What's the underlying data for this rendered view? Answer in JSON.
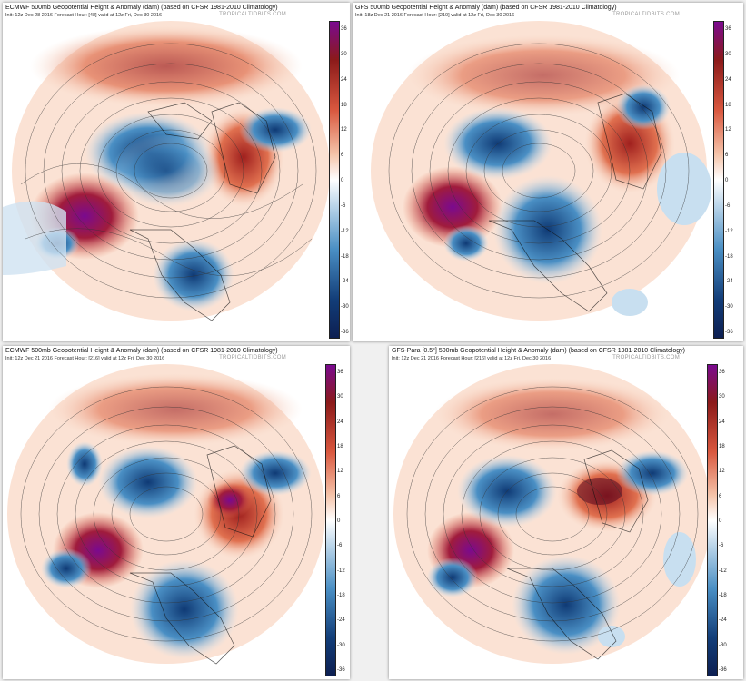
{
  "panels": [
    {
      "id": "p1",
      "title": "ECMWF 500mb Geopotential Height & Anomaly (dam) (based on CFSR 1981-2010 Climatology)",
      "subtitle": "Init: 12z Dec 28 2016   Forecast Hour: [48]   valid at 12z Fri, Dec 30 2016",
      "brand": "TROPICALTIDBITS.COM"
    },
    {
      "id": "p2",
      "title": "GFS 500mb Geopotential Height & Anomaly (dam) (based on CFSR 1981-2010 Climatology)",
      "subtitle": "Init: 18z Dec 21 2016   Forecast Hour: [210]   valid at 12z Fri, Dec 30 2016",
      "brand": "TROPICALTIDBITS.COM"
    },
    {
      "id": "p3",
      "title": "ECMWF 500mb Geopotential Height & Anomaly (dam) (based on CFSR 1981-2010 Climatology)",
      "subtitle": "Init: 12z Dec 21 2016   Forecast Hour: [216]   valid at 12z Fri, Dec 30 2016",
      "brand": "TROPICALTIDBITS.COM"
    },
    {
      "id": "p4",
      "title": "GFS-Para [0.5°] 500mb Geopotential Height & Anomaly (dam) (based on CFSR 1981-2010 Climatology)",
      "subtitle": "Init: 12z Dec 21 2016   Forecast Hour: [216]   valid at 12z Fri, Dec 30 2016",
      "brand": "TROPICALTIDBITS.COM"
    }
  ],
  "colorbar": {
    "ticks": [
      "36",
      "30",
      "24",
      "18",
      "12",
      "6",
      "0",
      "-6",
      "-12",
      "-18",
      "-24",
      "-30",
      "-36"
    ],
    "colors": {
      "max": "#7a0a8f",
      "warm_dark": "#8b1a1a",
      "warm_mid": "#d9583f",
      "warm_light": "#f5c4aa",
      "neutral": "#ffffff",
      "cool_light": "#bcd6ea",
      "cool_mid": "#4a8fc4",
      "cool_dark": "#123d78",
      "min": "#0d1f52"
    }
  }
}
